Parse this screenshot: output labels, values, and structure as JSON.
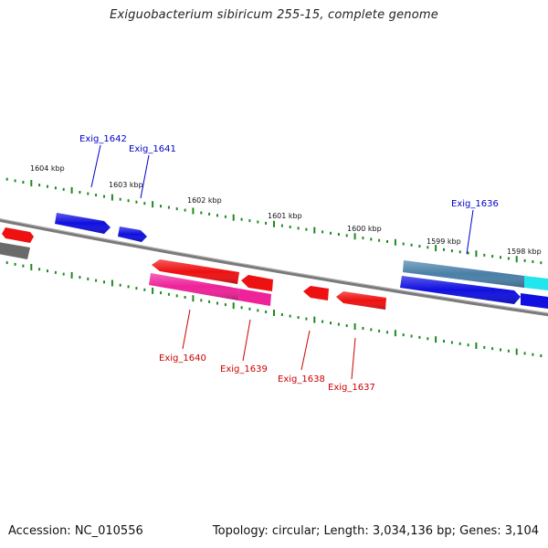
{
  "title": "Exiguobacterium sibiricum 255-15, complete genome",
  "footer": {
    "accession": "Accession: NC_010556",
    "summary": "Topology: circular; Length: 3,034,136 bp; Genes: 3,104"
  },
  "colors": {
    "forward_gene": "#1010e0",
    "reverse_gene": "#ee1111",
    "pseudo_gene": "#ee2299",
    "rna_gene": "#4a7fa8",
    "cyan_feature": "#22e6ee",
    "gray_feature": "#6a6a6a",
    "backbone": "#7a7a7a",
    "tick": "#1e8a1e",
    "label_forward": "#0000cc",
    "label_reverse": "#cc0000"
  },
  "scale_labels": [
    "1604 kbp",
    "1603 kbp",
    "1602 kbp",
    "1601 kbp",
    "1600 kbp",
    "1599 kbp",
    "1598 kbp"
  ],
  "gene_labels": [
    {
      "id": "g1642",
      "text": "Exig_1642",
      "strand": "forward"
    },
    {
      "id": "g1641",
      "text": "Exig_1641",
      "strand": "forward"
    },
    {
      "id": "g1636",
      "text": "Exig_1636",
      "strand": "forward"
    },
    {
      "id": "g1640",
      "text": "Exig_1640",
      "strand": "reverse"
    },
    {
      "id": "g1639",
      "text": "Exig_1639",
      "strand": "reverse"
    },
    {
      "id": "g1638",
      "text": "Exig_1638",
      "strand": "reverse"
    },
    {
      "id": "g1637",
      "text": "Exig_1637",
      "strand": "reverse"
    }
  ]
}
